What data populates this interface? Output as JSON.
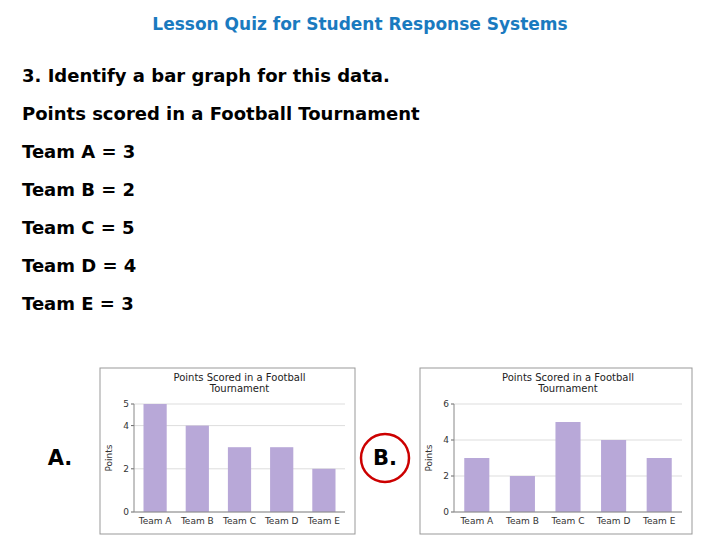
{
  "title": "Lesson Quiz for Student Response Systems",
  "title_color": "#1a7abf",
  "annotations": [
    "3. Identify a bar graph for this data.",
    "Points scored in a Football Tournament",
    "Team A = 3",
    "Team B = 2",
    "Team C = 5",
    "Team D = 4",
    "Team E = 3"
  ],
  "chart_data": [
    {
      "type": "bar",
      "title": "Points Scored in a Football\nTournament",
      "categories": [
        "Team A",
        "Team B",
        "Team C",
        "Team D",
        "Team E"
      ],
      "values": [
        5,
        4,
        3,
        3,
        2
      ],
      "color": "#b8a8d8",
      "ylabel": "Points",
      "ylim": [
        0,
        5
      ],
      "yticks": [
        0,
        2,
        4,
        5
      ],
      "grid": true,
      "annotations": [
        {
          "text": "A."
        }
      ]
    },
    {
      "type": "bar",
      "title": "Points Scored in a Football\nTournament",
      "categories": [
        "Team A",
        "Team B",
        "Team C",
        "Team D",
        "Team E"
      ],
      "values": [
        3,
        2,
        5,
        4,
        3
      ],
      "color": "#b8a8d8",
      "ylabel": "Points",
      "ylim": [
        0,
        6
      ],
      "yticks": [
        0,
        2,
        4,
        6
      ],
      "grid": true,
      "annotations": [
        {
          "text": "B.",
          "color": "#cc0000"
        }
      ]
    }
  ]
}
